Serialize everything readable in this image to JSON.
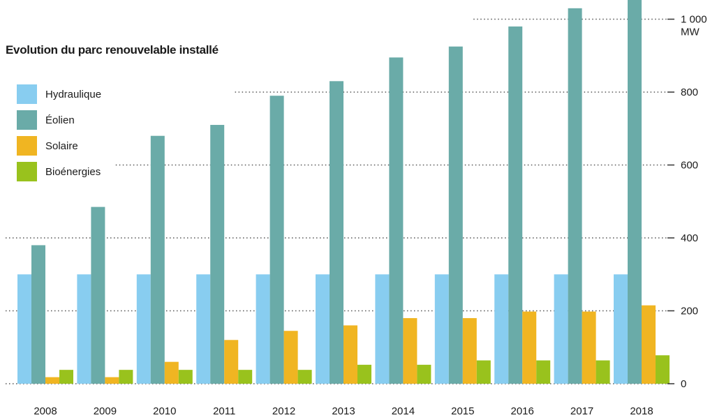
{
  "chart_data": {
    "type": "bar",
    "title": "Evolution du parc renouvelable installé",
    "xlabel": "",
    "ylabel": "",
    "unit": "MW",
    "categories": [
      "2008",
      "2009",
      "2010",
      "2011",
      "2012",
      "2013",
      "2014",
      "2015",
      "2016",
      "2017",
      "2018"
    ],
    "series": [
      {
        "name": "Hydraulique",
        "color": "#88cdf0",
        "values": [
          300,
          300,
          300,
          300,
          300,
          300,
          300,
          300,
          300,
          300,
          300
        ]
      },
      {
        "name": "Éolien",
        "color": "#6aaba8",
        "values": [
          380,
          485,
          680,
          710,
          790,
          830,
          895,
          925,
          980,
          1030,
          1060
        ]
      },
      {
        "name": "Solaire",
        "color": "#f0b522",
        "values": [
          18,
          18,
          60,
          120,
          145,
          160,
          180,
          180,
          198,
          198,
          215
        ]
      },
      {
        "name": "Bioénergies",
        "color": "#99c21d",
        "values": [
          38,
          38,
          38,
          38,
          38,
          52,
          52,
          64,
          64,
          64,
          78
        ]
      }
    ],
    "y_ticks": [
      {
        "value": 0,
        "label": "0"
      },
      {
        "value": 200,
        "label": "200"
      },
      {
        "value": 400,
        "label": "400"
      },
      {
        "value": 600,
        "label": "600"
      },
      {
        "value": 800,
        "label": "800"
      },
      {
        "value": 1000,
        "label": "1 000"
      }
    ],
    "ylim": [
      0,
      1060
    ],
    "y_axis_position": "right",
    "grid": true,
    "grid_style": "dotted",
    "legend_position": "top-left"
  }
}
